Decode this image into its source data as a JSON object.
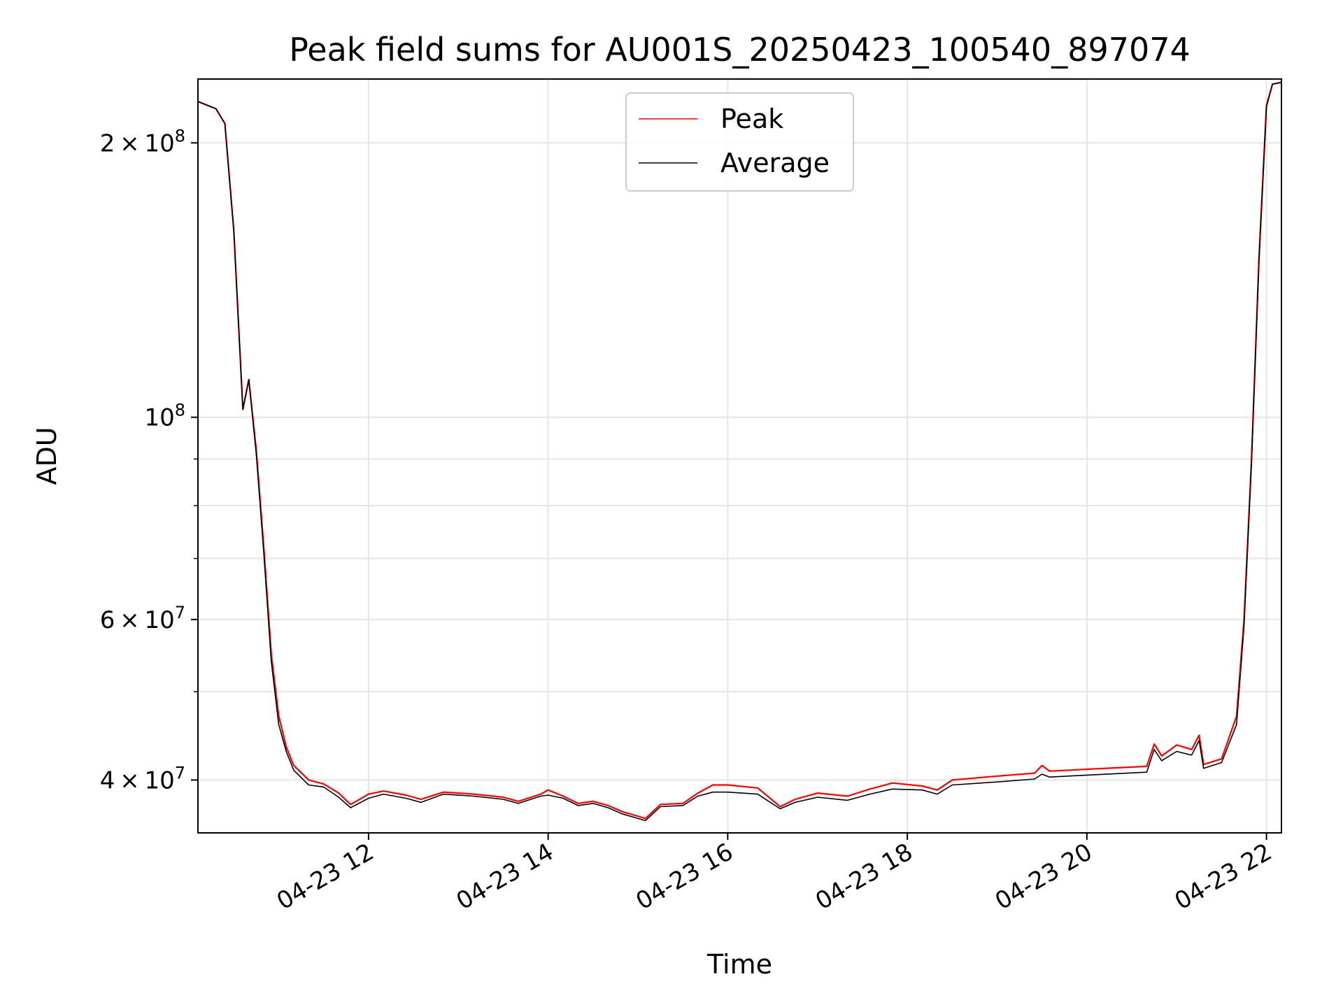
{
  "chart_data": {
    "type": "line",
    "title": "Peak field sums for AU001S_20250423_100540_897074",
    "xlabel": "Time",
    "ylabel": "ADU",
    "yscale": "log",
    "ylim": [
      35000000,
      235000000
    ],
    "xlim": [
      "2025-04-23 10:06",
      "2025-04-23 22:10"
    ],
    "grid": true,
    "legend_position": "upper center",
    "x_ticks": [
      {
        "t": "2025-04-23 12:00",
        "label": "04-23 12"
      },
      {
        "t": "2025-04-23 14:00",
        "label": "04-23 14"
      },
      {
        "t": "2025-04-23 16:00",
        "label": "04-23 16"
      },
      {
        "t": "2025-04-23 18:00",
        "label": "04-23 18"
      },
      {
        "t": "2025-04-23 20:00",
        "label": "04-23 20"
      },
      {
        "t": "2025-04-23 22:00",
        "label": "04-23 22"
      }
    ],
    "y_ticks": [
      {
        "value": 40000000,
        "mantissa": "4",
        "exp": "7"
      },
      {
        "value": 60000000,
        "mantissa": "6",
        "exp": "7"
      },
      {
        "value": 100000000,
        "mantissa": "",
        "exp": "8"
      },
      {
        "value": 200000000,
        "mantissa": "2",
        "exp": "8"
      }
    ],
    "y_minor_ticks": [
      50000000,
      70000000,
      80000000,
      90000000
    ],
    "series": [
      {
        "name": "Peak",
        "color": "#ff0000",
        "points": [
          [
            "2025-04-23 10:06",
            222000000
          ],
          [
            "2025-04-23 10:12",
            220000000
          ],
          [
            "2025-04-23 10:18",
            218000000
          ],
          [
            "2025-04-23 10:24",
            210000000
          ],
          [
            "2025-04-23 10:30",
            160000000
          ],
          [
            "2025-04-23 10:36",
            102000000
          ],
          [
            "2025-04-23 10:40",
            110000000
          ],
          [
            "2025-04-23 10:45",
            92000000
          ],
          [
            "2025-04-23 10:50",
            72000000
          ],
          [
            "2025-04-23 10:55",
            55000000
          ],
          [
            "2025-04-23 11:00",
            47000000
          ],
          [
            "2025-04-23 11:05",
            43500000
          ],
          [
            "2025-04-23 11:10",
            41500000
          ],
          [
            "2025-04-23 11:20",
            40000000
          ],
          [
            "2025-04-23 11:30",
            39600000
          ],
          [
            "2025-04-23 11:40",
            38700000
          ],
          [
            "2025-04-23 11:48",
            37600000
          ],
          [
            "2025-04-23 12:00",
            38600000
          ],
          [
            "2025-04-23 12:10",
            38900000
          ],
          [
            "2025-04-23 12:25",
            38500000
          ],
          [
            "2025-04-23 12:35",
            38100000
          ],
          [
            "2025-04-23 12:50",
            38800000
          ],
          [
            "2025-04-23 13:10",
            38600000
          ],
          [
            "2025-04-23 13:30",
            38300000
          ],
          [
            "2025-04-23 13:40",
            37900000
          ],
          [
            "2025-04-23 13:55",
            38600000
          ],
          [
            "2025-04-23 14:00",
            39000000
          ],
          [
            "2025-04-23 14:10",
            38400000
          ],
          [
            "2025-04-23 14:20",
            37700000
          ],
          [
            "2025-04-23 14:30",
            37900000
          ],
          [
            "2025-04-23 14:40",
            37500000
          ],
          [
            "2025-04-23 14:50",
            36900000
          ],
          [
            "2025-04-23 15:00",
            36500000
          ],
          [
            "2025-04-23 15:05",
            36300000
          ],
          [
            "2025-04-23 15:15",
            37600000
          ],
          [
            "2025-04-23 15:30",
            37700000
          ],
          [
            "2025-04-23 15:40",
            38700000
          ],
          [
            "2025-04-23 15:50",
            39500000
          ],
          [
            "2025-04-23 16:00",
            39500000
          ],
          [
            "2025-04-23 16:20",
            39200000
          ],
          [
            "2025-04-23 16:35",
            37400000
          ],
          [
            "2025-04-23 16:45",
            38100000
          ],
          [
            "2025-04-23 17:00",
            38700000
          ],
          [
            "2025-04-23 17:20",
            38400000
          ],
          [
            "2025-04-23 17:35",
            39100000
          ],
          [
            "2025-04-23 17:50",
            39700000
          ],
          [
            "2025-04-23 18:10",
            39400000
          ],
          [
            "2025-04-23 18:20",
            39000000
          ],
          [
            "2025-04-23 18:30",
            40000000
          ],
          [
            "2025-04-23 19:00",
            40400000
          ],
          [
            "2025-04-23 19:25",
            40700000
          ],
          [
            "2025-04-23 19:30",
            41500000
          ],
          [
            "2025-04-23 19:35",
            40900000
          ],
          [
            "2025-04-23 20:00",
            41100000
          ],
          [
            "2025-04-23 20:40",
            41400000
          ],
          [
            "2025-04-23 20:45",
            43800000
          ],
          [
            "2025-04-23 20:50",
            42500000
          ],
          [
            "2025-04-23 21:00",
            43700000
          ],
          [
            "2025-04-23 21:10",
            43200000
          ],
          [
            "2025-04-23 21:15",
            44800000
          ],
          [
            "2025-04-23 21:18",
            41600000
          ],
          [
            "2025-04-23 21:30",
            42200000
          ],
          [
            "2025-04-23 21:40",
            47000000
          ],
          [
            "2025-04-23 21:45",
            60000000
          ],
          [
            "2025-04-23 21:50",
            90000000
          ],
          [
            "2025-04-23 21:55",
            150000000
          ],
          [
            "2025-04-23 22:00",
            220000000
          ],
          [
            "2025-04-23 22:04",
            232000000
          ],
          [
            "2025-04-23 22:10",
            233000000
          ]
        ]
      },
      {
        "name": "Average",
        "color": "#000000",
        "points": [
          [
            "2025-04-23 10:06",
            222000000
          ],
          [
            "2025-04-23 10:12",
            220000000
          ],
          [
            "2025-04-23 10:18",
            218000000
          ],
          [
            "2025-04-23 10:24",
            210000000
          ],
          [
            "2025-04-23 10:30",
            160000000
          ],
          [
            "2025-04-23 10:36",
            102000000
          ],
          [
            "2025-04-23 10:40",
            110000000
          ],
          [
            "2025-04-23 10:45",
            91000000
          ],
          [
            "2025-04-23 10:50",
            71000000
          ],
          [
            "2025-04-23 10:55",
            54000000
          ],
          [
            "2025-04-23 11:00",
            46000000
          ],
          [
            "2025-04-23 11:05",
            43000000
          ],
          [
            "2025-04-23 11:10",
            41000000
          ],
          [
            "2025-04-23 11:20",
            39500000
          ],
          [
            "2025-04-23 11:30",
            39300000
          ],
          [
            "2025-04-23 11:40",
            38300000
          ],
          [
            "2025-04-23 11:48",
            37300000
          ],
          [
            "2025-04-23 12:00",
            38200000
          ],
          [
            "2025-04-23 12:10",
            38600000
          ],
          [
            "2025-04-23 12:25",
            38200000
          ],
          [
            "2025-04-23 12:35",
            37800000
          ],
          [
            "2025-04-23 12:50",
            38600000
          ],
          [
            "2025-04-23 13:10",
            38400000
          ],
          [
            "2025-04-23 13:30",
            38100000
          ],
          [
            "2025-04-23 13:40",
            37700000
          ],
          [
            "2025-04-23 13:55",
            38400000
          ],
          [
            "2025-04-23 14:00",
            38500000
          ],
          [
            "2025-04-23 14:10",
            38200000
          ],
          [
            "2025-04-23 14:20",
            37500000
          ],
          [
            "2025-04-23 14:30",
            37700000
          ],
          [
            "2025-04-23 14:40",
            37300000
          ],
          [
            "2025-04-23 14:50",
            36700000
          ],
          [
            "2025-04-23 15:00",
            36300000
          ],
          [
            "2025-04-23 15:05",
            36100000
          ],
          [
            "2025-04-23 15:15",
            37400000
          ],
          [
            "2025-04-23 15:30",
            37500000
          ],
          [
            "2025-04-23 15:40",
            38400000
          ],
          [
            "2025-04-23 15:50",
            38800000
          ],
          [
            "2025-04-23 16:00",
            38800000
          ],
          [
            "2025-04-23 16:20",
            38600000
          ],
          [
            "2025-04-23 16:35",
            37200000
          ],
          [
            "2025-04-23 16:45",
            37800000
          ],
          [
            "2025-04-23 17:00",
            38300000
          ],
          [
            "2025-04-23 17:20",
            38000000
          ],
          [
            "2025-04-23 17:35",
            38600000
          ],
          [
            "2025-04-23 17:50",
            39100000
          ],
          [
            "2025-04-23 18:10",
            39000000
          ],
          [
            "2025-04-23 18:20",
            38600000
          ],
          [
            "2025-04-23 18:30",
            39500000
          ],
          [
            "2025-04-23 19:00",
            39800000
          ],
          [
            "2025-04-23 19:25",
            40100000
          ],
          [
            "2025-04-23 19:30",
            40600000
          ],
          [
            "2025-04-23 19:35",
            40300000
          ],
          [
            "2025-04-23 20:00",
            40500000
          ],
          [
            "2025-04-23 20:40",
            40800000
          ],
          [
            "2025-04-23 20:45",
            43200000
          ],
          [
            "2025-04-23 20:50",
            42000000
          ],
          [
            "2025-04-23 21:00",
            43000000
          ],
          [
            "2025-04-23 21:10",
            42600000
          ],
          [
            "2025-04-23 21:15",
            44200000
          ],
          [
            "2025-04-23 21:18",
            41200000
          ],
          [
            "2025-04-23 21:30",
            41800000
          ],
          [
            "2025-04-23 21:40",
            46000000
          ],
          [
            "2025-04-23 21:45",
            59000000
          ],
          [
            "2025-04-23 21:50",
            89000000
          ],
          [
            "2025-04-23 21:55",
            148000000
          ],
          [
            "2025-04-23 22:00",
            219000000
          ],
          [
            "2025-04-23 22:04",
            232000000
          ],
          [
            "2025-04-23 22:10",
            233000000
          ]
        ]
      }
    ]
  }
}
